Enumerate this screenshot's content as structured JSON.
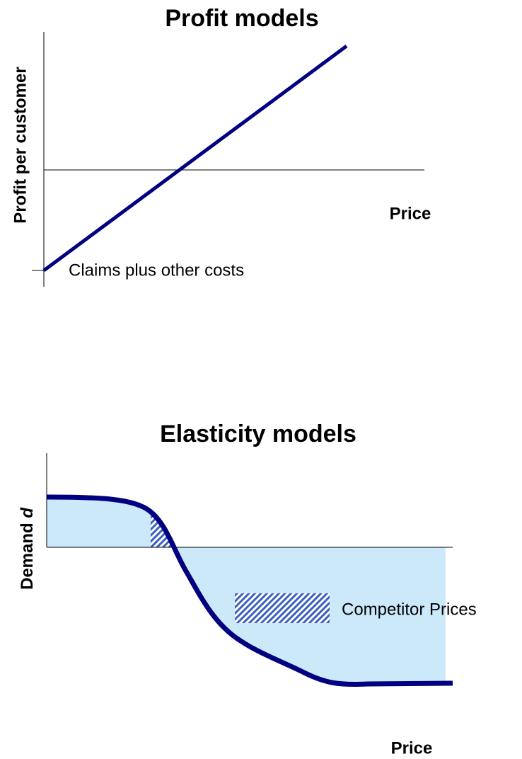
{
  "profit": {
    "title": "Profit models",
    "y_label": "Profit per customer",
    "x_label": "Price",
    "annotation": "Claims plus other costs"
  },
  "elasticity": {
    "title": "Elasticity models",
    "y_label": {
      "word": "Demand",
      "symbol": "d"
    },
    "x_label": "Price",
    "legend": "Competitor Prices"
  }
}
